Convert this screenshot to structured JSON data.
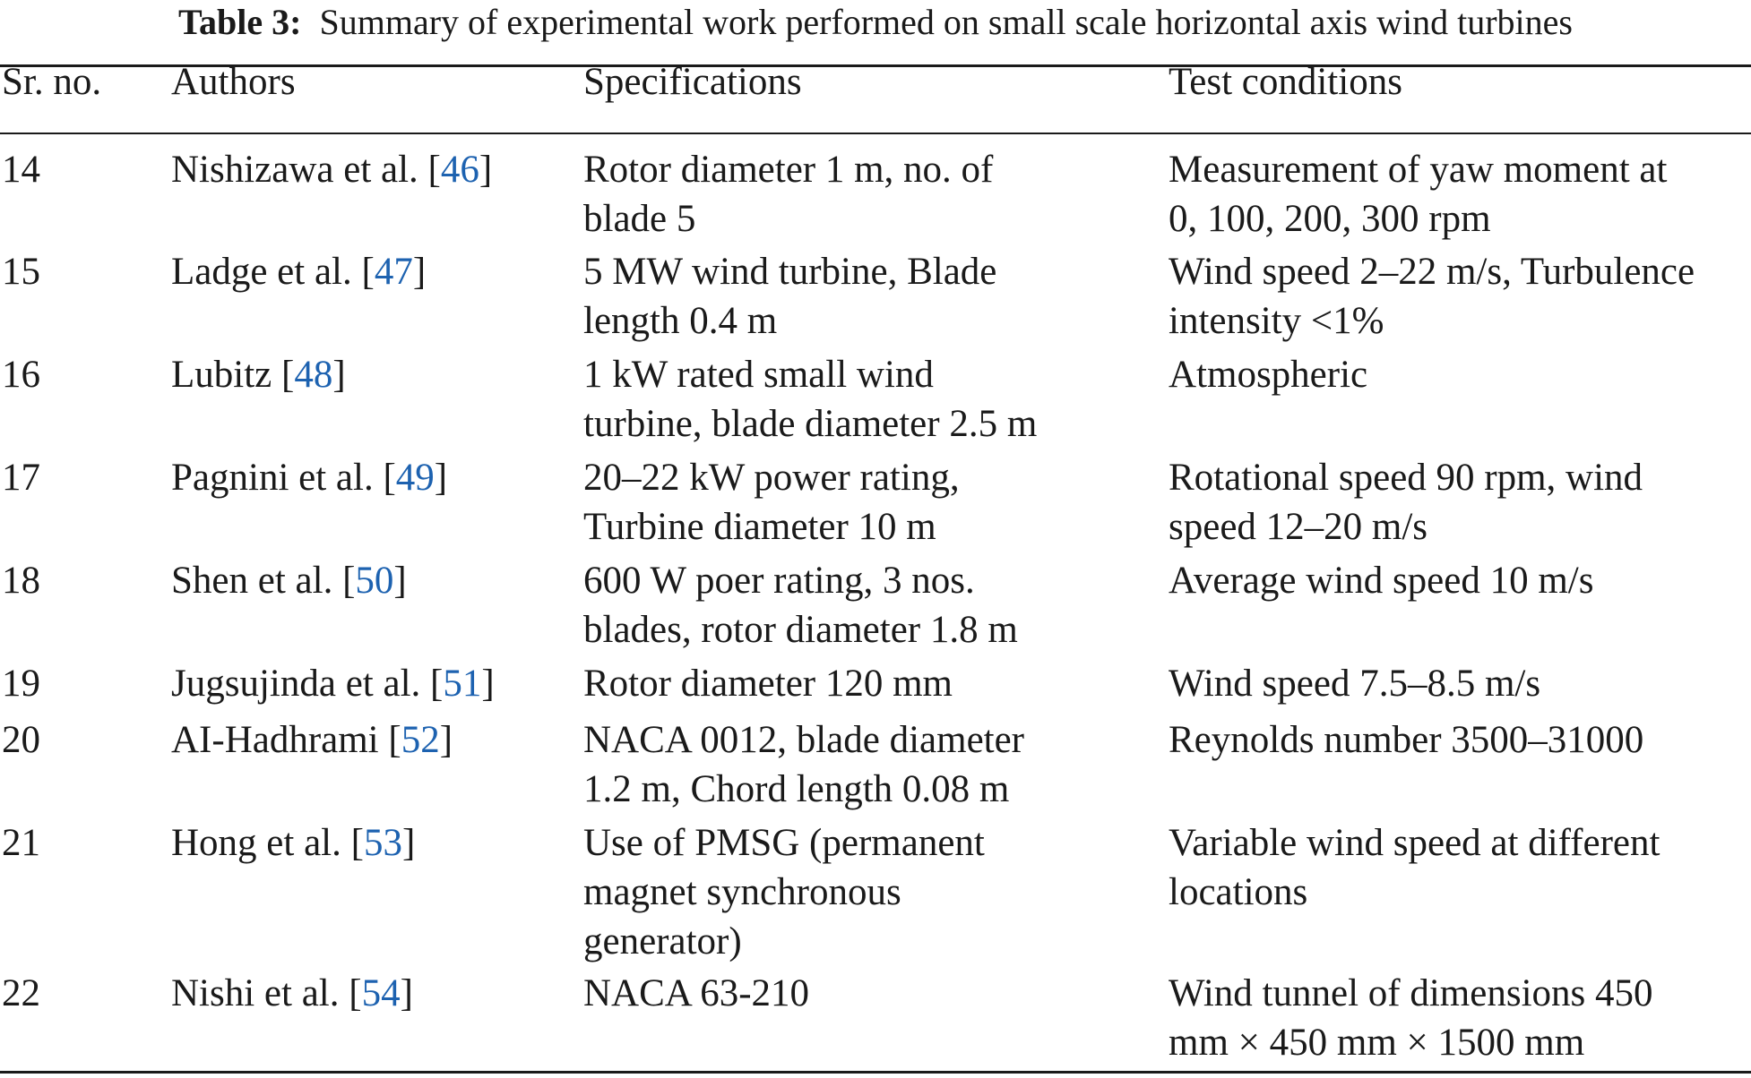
{
  "caption": {
    "label": "Table 3:",
    "text": "Summary of experimental work performed on small scale horizontal axis wind turbines"
  },
  "columns": [
    "Sr. no.",
    "Authors",
    "Specifications",
    "Test conditions"
  ],
  "rows": [
    {
      "no": "14",
      "author": "Nishizawa et al. [",
      "ref": "46",
      "spec": [
        "Rotor diameter 1 m, no. of",
        "blade 5"
      ],
      "test": [
        "Measurement of yaw moment at",
        "0, 100, 200, 300 rpm"
      ]
    },
    {
      "no": "15",
      "author": "Ladge et al. [",
      "ref": "47",
      "spec": [
        "5 MW wind turbine, Blade",
        "length 0.4 m"
      ],
      "test": [
        "Wind speed 2–22 m/s, Turbulence",
        "intensity <1%"
      ]
    },
    {
      "no": "16",
      "author": "Lubitz [",
      "ref": "48",
      "spec": [
        "1 kW rated small wind",
        "turbine, blade diameter 2.5 m"
      ],
      "test": [
        "Atmospheric"
      ]
    },
    {
      "no": "17",
      "author": "Pagnini et al. [",
      "ref": "49",
      "spec": [
        "20–22 kW power rating,",
        "Turbine diameter 10 m"
      ],
      "test": [
        "Rotational speed 90 rpm, wind",
        "speed 12–20 m/s"
      ]
    },
    {
      "no": "18",
      "author": "Shen et al. [",
      "ref": "50",
      "spec": [
        "600 W poer rating, 3 nos.",
        "blades, rotor diameter 1.8 m"
      ],
      "test": [
        "Average wind speed 10 m/s"
      ]
    },
    {
      "no": "19",
      "author": "Jugsujinda et al. [",
      "ref": "51",
      "spec": [
        "Rotor diameter 120 mm"
      ],
      "test": [
        "Wind speed 7.5–8.5 m/s"
      ]
    },
    {
      "no": "20",
      "author": "AI-Hadhrami [",
      "ref": "52",
      "spec": [
        "NACA 0012, blade diameter",
        "1.2 m, Chord length 0.08 m"
      ],
      "test": [
        "Reynolds number 3500–31000"
      ]
    },
    {
      "no": "21",
      "author": "Hong et al. [",
      "ref": "53",
      "spec": [
        "Use of PMSG (permanent",
        "magnet synchronous",
        "generator)"
      ],
      "test": [
        "Variable wind speed at different",
        "locations"
      ]
    },
    {
      "no": "22",
      "author": "Nishi et al. [",
      "ref": "54",
      "spec": [
        "NACA 63-210"
      ],
      "test": [
        "Wind tunnel of dimensions 450",
        "mm × 450 mm × 1500 mm"
      ]
    }
  ],
  "colors": {
    "text": "#1a1a1a",
    "reference_link": "#1d62b0"
  }
}
